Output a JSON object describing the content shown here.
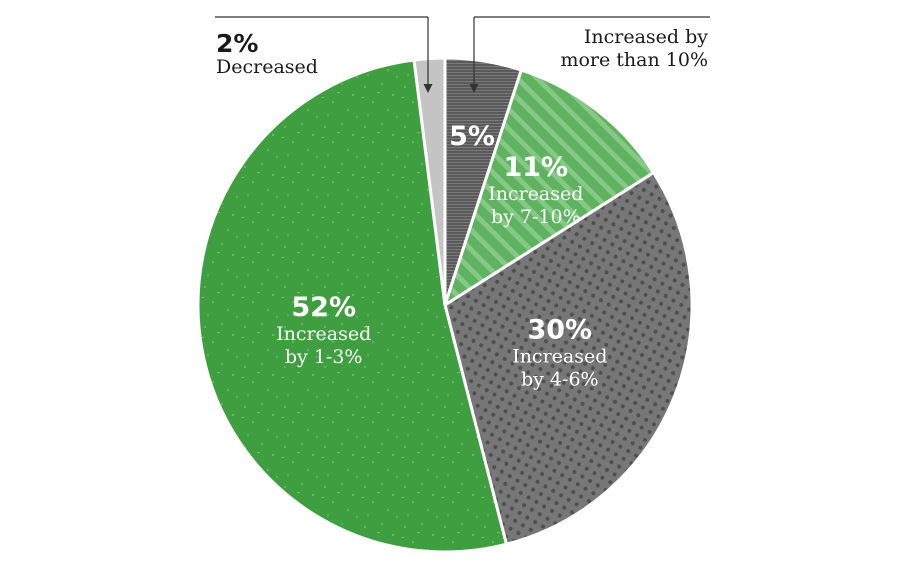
{
  "chart_data": {
    "type": "pie",
    "slices": [
      {
        "label": "Increased by more than 10%",
        "value": 5,
        "pct_text": "5%",
        "desc_lines": [],
        "callout": true,
        "color": "#5e5e5e",
        "pattern": "hlines"
      },
      {
        "label": "Increased by 7-10%",
        "value": 11,
        "pct_text": "11%",
        "desc_lines": [
          "Increased",
          "by 7-10%"
        ],
        "callout": false,
        "color": "#63b463",
        "pattern": "stripes"
      },
      {
        "label": "Increased by 4-6%",
        "value": 30,
        "pct_text": "30%",
        "desc_lines": [
          "Increased",
          "by 4-6%"
        ],
        "callout": false,
        "color": "#6a6a6a",
        "pattern": "dots"
      },
      {
        "label": "Increased by 1-3%",
        "value": 52,
        "pct_text": "52%",
        "desc_lines": [
          "Increased",
          "by 1-3%"
        ],
        "callout": false,
        "color": "#3d9e3f",
        "pattern": "speckle"
      },
      {
        "label": "Decreased",
        "value": 2,
        "pct_text": "2%",
        "desc_lines": [],
        "callout": true,
        "color": "#c4c4c4",
        "pattern": "none"
      }
    ],
    "callouts": {
      "decreased": {
        "pct": "2%",
        "label": "Decreased"
      },
      "increased_more_than_10": {
        "lines": [
          "Increased by",
          "more than 10%"
        ]
      }
    }
  }
}
